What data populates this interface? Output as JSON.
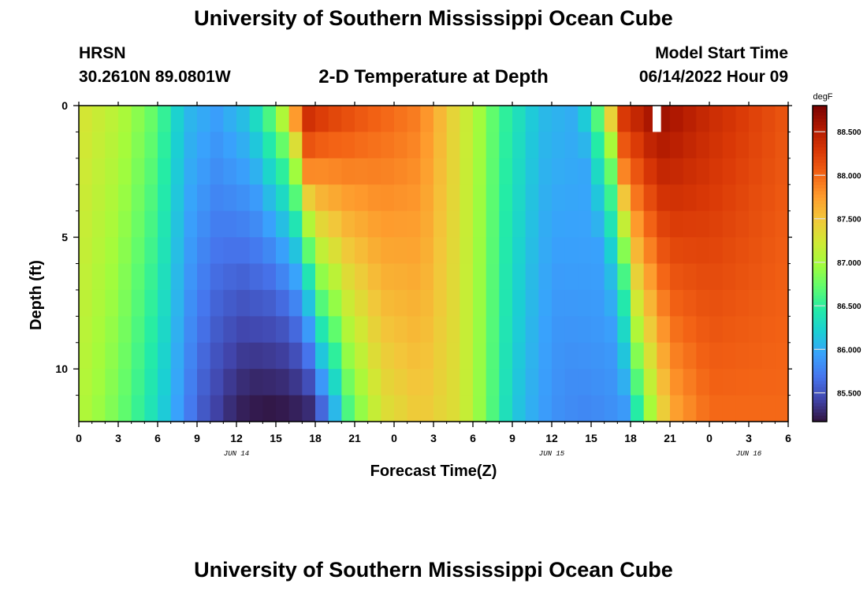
{
  "page": {
    "title_top": "University of Southern Mississippi Ocean Cube",
    "title_bottom": "University of Southern Mississippi Ocean Cube",
    "station": "HRSN",
    "coords": "30.2610N  89.0801W",
    "plot_title": "2-D Temperature at Depth",
    "start_label": "Model Start Time",
    "start_value": "06/14/2022 Hour 09"
  },
  "chart_data": {
    "type": "heatmap",
    "title": "2-D Temperature at Depth",
    "xlabel": "Forecast Time(Z)",
    "ylabel": "Depth (ft)",
    "colorbar_unit": "degF",
    "x_hours": [
      0,
      54
    ],
    "x_tick_labels": [
      "0",
      "3",
      "6",
      "9",
      "12",
      "15",
      "18",
      "21",
      "0",
      "3",
      "6",
      "9",
      "12",
      "15",
      "18",
      "21",
      "0",
      "3",
      "6"
    ],
    "date_labels": [
      {
        "label": "JUN 14",
        "hour": 12
      },
      {
        "label": "JUN 15",
        "hour": 36
      },
      {
        "label": "JUN 16",
        "hour": 51
      }
    ],
    "ylim": [
      0,
      12
    ],
    "y_ticks": [
      0,
      5,
      10
    ],
    "colorbar_range": [
      85.17,
      88.8
    ],
    "colorbar_ticks": [
      "85.500",
      "86.000",
      "86.500",
      "87.000",
      "87.500",
      "88.000",
      "88.500"
    ],
    "colorbar_tick_values": [
      85.5,
      86.0,
      86.5,
      87.0,
      87.5,
      88.0,
      88.5
    ],
    "depth_levels": [
      0.5,
      1.5,
      2.5,
      3.5,
      4.5,
      5.5,
      6.5,
      7.5,
      8.5,
      9.5,
      10.5,
      11.5
    ],
    "time_steps": 54,
    "surface_profile_degF": [
      {
        "hour": 0,
        "value": 87.3
      },
      {
        "hour": 3,
        "value": 87.1
      },
      {
        "hour": 6,
        "value": 86.7
      },
      {
        "hour": 8,
        "value": 86.1
      },
      {
        "hour": 10.5,
        "value": 85.95
      },
      {
        "hour": 13,
        "value": 86.2
      },
      {
        "hour": 15,
        "value": 86.9
      },
      {
        "hour": 16,
        "value": 87.5
      },
      {
        "hour": 17,
        "value": 88.5
      },
      {
        "hour": 19,
        "value": 88.3
      },
      {
        "hour": 22,
        "value": 88.1
      },
      {
        "hour": 26,
        "value": 87.9
      },
      {
        "hour": 28,
        "value": 87.5
      },
      {
        "hour": 30,
        "value": 87.1
      },
      {
        "hour": 32,
        "value": 86.6
      },
      {
        "hour": 35,
        "value": 86.1
      },
      {
        "hour": 38,
        "value": 86.0
      },
      {
        "hour": 40,
        "value": 87.0
      },
      {
        "hour": 41,
        "value": 88.3
      },
      {
        "hour": 44,
        "value": 88.7
      },
      {
        "hour": 48,
        "value": 88.4
      },
      {
        "hour": 54,
        "value": 88.1
      }
    ],
    "bottom_profile_degF": [
      {
        "hour": 0,
        "value": 87.1
      },
      {
        "hour": 3,
        "value": 86.8
      },
      {
        "hour": 6,
        "value": 86.3
      },
      {
        "hour": 9,
        "value": 85.6
      },
      {
        "hour": 12,
        "value": 85.2
      },
      {
        "hour": 15,
        "value": 85.3
      },
      {
        "hour": 18,
        "value": 85.8
      },
      {
        "hour": 20,
        "value": 86.6
      },
      {
        "hour": 23,
        "value": 87.3
      },
      {
        "hour": 26,
        "value": 87.5
      },
      {
        "hour": 29,
        "value": 87.3
      },
      {
        "hour": 31,
        "value": 86.8
      },
      {
        "hour": 33,
        "value": 86.2
      },
      {
        "hour": 36,
        "value": 85.8
      },
      {
        "hour": 39,
        "value": 85.9
      },
      {
        "hour": 42,
        "value": 86.8
      },
      {
        "hour": 45,
        "value": 87.7
      },
      {
        "hour": 48,
        "value": 88.0
      },
      {
        "hour": 54,
        "value": 88.0
      }
    ],
    "front_shift_hours": [
      {
        "hour": 16,
        "shift": 3.2
      },
      {
        "hour": 40,
        "shift": 3.2
      }
    ],
    "masked_cell": {
      "hour": 44,
      "depth": 0.5
    }
  },
  "colors": {
    "colormap": [
      "#30123b",
      "#4145ab",
      "#4675ed",
      "#39a2fc",
      "#1bcfd4",
      "#24eca6",
      "#61fc6c",
      "#a4fc3b",
      "#d1e834",
      "#f3c63a",
      "#fe9b2d",
      "#f36315",
      "#d93806",
      "#b11901",
      "#7a0402"
    ]
  }
}
